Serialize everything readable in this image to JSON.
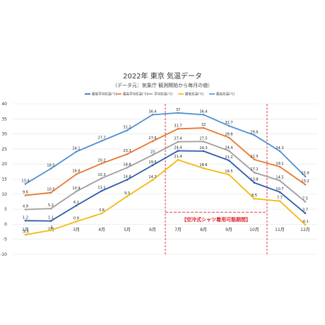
{
  "chart_data": {
    "type": "line",
    "title": "2022年 東京 気温データ",
    "subtitle": "（データ元：気象庁 観測開始から毎月の値）",
    "categories": [
      "1月",
      "2月",
      "3月",
      "4月",
      "5月",
      "6月",
      "7月",
      "8月",
      "9月",
      "10月",
      "11月",
      "12月"
    ],
    "ylim": [
      -10,
      40
    ],
    "yticks": [
      -10,
      -5,
      0,
      5,
      10,
      15,
      20,
      25,
      30,
      35,
      40
    ],
    "grid": true,
    "legend_position": "top",
    "series": [
      {
        "name": "最低平均気温(℃)",
        "color": "#2e5aa8",
        "values": [
          1.2,
          1.1,
          6.2,
          11.1,
          14.8,
          19.6,
          24.4,
          24.3,
          21.2,
          13.8,
          10.7,
          3.7
        ]
      },
      {
        "name": "最高平均気温(℃)",
        "color": "#e8772e",
        "values": [
          9.6,
          10.5,
          16.6,
          20.2,
          23.3,
          27.6,
          31.7,
          32.0,
          28.8,
          21.5,
          19.1,
          13.2
        ]
      },
      {
        "name": "平均気温(℃)",
        "color": "#9e9e9e",
        "values": [
          4.9,
          5.2,
          10.9,
          15.3,
          18.8,
          23.0,
          27.4,
          27.5,
          24.4,
          17.2,
          14.5,
          7.5
        ]
      },
      {
        "name": "最低気温(℃)",
        "color": "#f2b90c",
        "values": [
          -3.5,
          -2.0,
          0.9,
          3.6,
          9.3,
          14.7,
          21.4,
          18.6,
          16.5,
          8.5,
          7.7,
          -0.1
        ]
      },
      {
        "name": "最高気温(℃)",
        "color": "#4e8fd4",
        "values": [
          13.4,
          18.5,
          24.1,
          27.7,
          31.2,
          36.4,
          37.0,
          36.4,
          32.7,
          29.6,
          24.3,
          15.9
        ]
      }
    ],
    "annotation": {
      "text": "【空冷式シャツ着用可能期間】",
      "start_category": "6月",
      "end_category": "10月",
      "color": "#e0202a"
    }
  }
}
